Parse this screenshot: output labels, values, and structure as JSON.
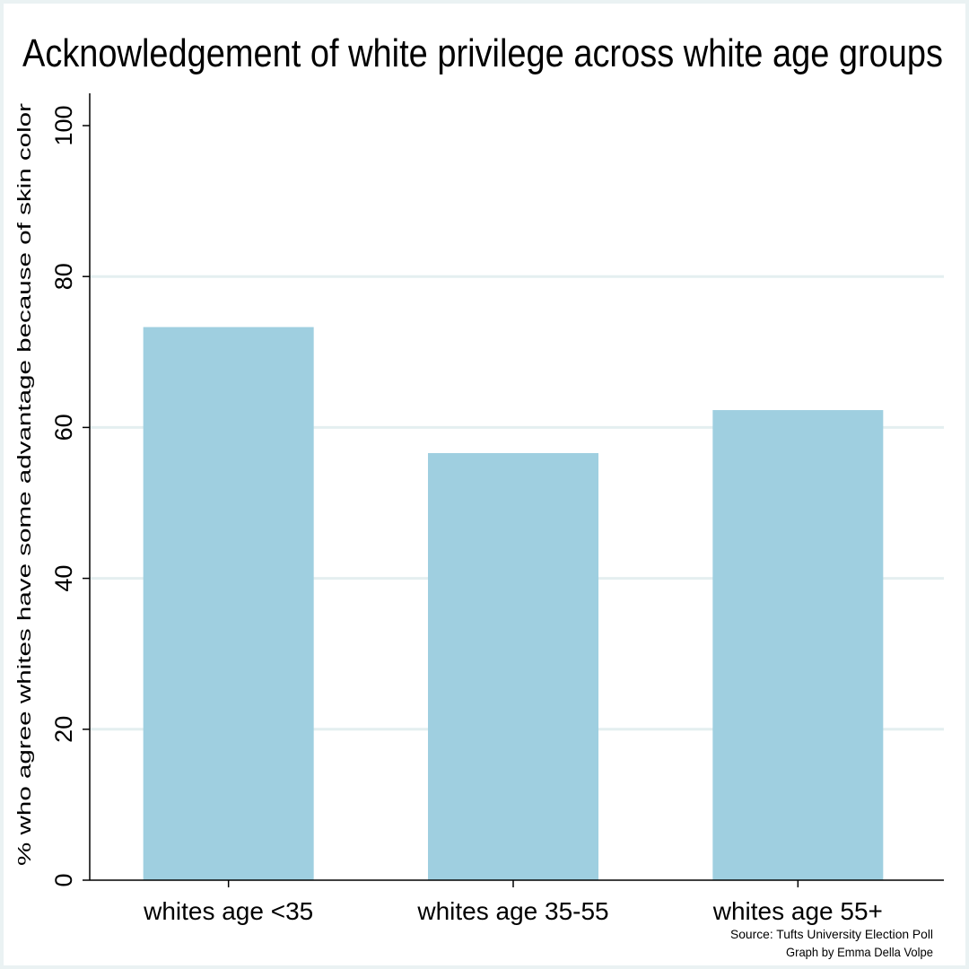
{
  "chart_data": {
    "type": "bar",
    "title": "Acknowledgement of white privilege across white age groups",
    "ylabel": "% who agree whites have some advantage because of skin color",
    "xlabel": "",
    "categories": [
      "whites age <35",
      "whites age 35-55",
      "whites age 55+"
    ],
    "values": [
      73.3,
      56.6,
      62.3
    ],
    "ylim": [
      0,
      100
    ],
    "yticks": [
      "0",
      "20",
      "40",
      "60",
      "80",
      "100"
    ],
    "grid": true,
    "bar_color": "#9fcfe0",
    "grid_color": "#e4eff0",
    "background_color": "#eaf2f3",
    "notes": [
      "Source: Tufts University Election Poll",
      "Graph by Emma Della Volpe"
    ]
  }
}
